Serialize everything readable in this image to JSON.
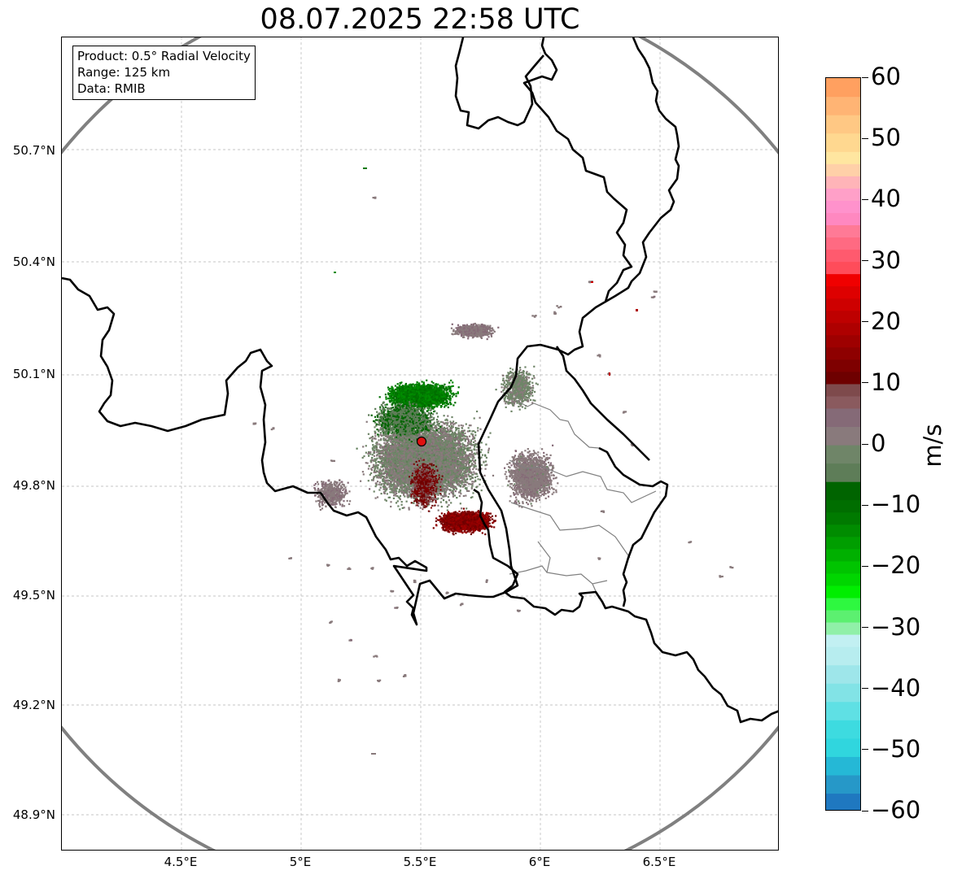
{
  "title": "08.07.2025 22:58 UTC",
  "info": {
    "product": "Product: 0.5° Radial Velocity",
    "range": "Range: 125 km",
    "source": "Data: RMIB"
  },
  "axes": {
    "lat_labels": [
      "50.7°N",
      "50.4°N",
      "50.1°N",
      "49.8°N",
      "49.5°N",
      "49.2°N",
      "48.9°N"
    ],
    "lon_labels": [
      "4.5°E",
      "5°E",
      "5.5°E",
      "6°E",
      "6.5°E"
    ]
  },
  "map": {
    "extent_lon": [
      4.0,
      7.0
    ],
    "extent_lat": [
      48.8,
      51.0
    ],
    "radar_site": {
      "lon": 5.505,
      "lat": 49.914
    },
    "range_km": 125
  },
  "colorbar": {
    "label": "m/s",
    "min": -60,
    "max": 60,
    "tick_labels": [
      "60",
      "50",
      "40",
      "30",
      "20",
      "10",
      "0",
      "−10",
      "−20",
      "−30",
      "−40",
      "−50",
      "−60"
    ],
    "bands": [
      {
        "from": -60,
        "to": -57,
        "color": "#1f78c0"
      },
      {
        "from": -57,
        "to": -54,
        "color": "#2698c8"
      },
      {
        "from": -54,
        "to": -51,
        "color": "#25b8d6"
      },
      {
        "from": -51,
        "to": -48,
        "color": "#30d6de"
      },
      {
        "from": -48,
        "to": -45,
        "color": "#3ddbe0"
      },
      {
        "from": -45,
        "to": -42,
        "color": "#5fe0e4"
      },
      {
        "from": -42,
        "to": -39,
        "color": "#82e3e6"
      },
      {
        "from": -39,
        "to": -36,
        "color": "#9ee6ea"
      },
      {
        "from": -36,
        "to": -33,
        "color": "#b7edef"
      },
      {
        "from": -33,
        "to": -31,
        "color": "#c2f0f2"
      },
      {
        "from": -31,
        "to": -29,
        "color": "#90f0a8"
      },
      {
        "from": -29,
        "to": -27,
        "color": "#5cf070"
      },
      {
        "from": -27,
        "to": -25,
        "color": "#2ef840"
      },
      {
        "from": -25,
        "to": -23,
        "color": "#00ee00"
      },
      {
        "from": -23,
        "to": -21,
        "color": "#00d600"
      },
      {
        "from": -21,
        "to": -19,
        "color": "#00c400"
      },
      {
        "from": -19,
        "to": -17,
        "color": "#00b000"
      },
      {
        "from": -17,
        "to": -15,
        "color": "#009e00"
      },
      {
        "from": -15,
        "to": -13,
        "color": "#008c00"
      },
      {
        "from": -13,
        "to": -11,
        "color": "#007a00"
      },
      {
        "from": -11,
        "to": -9,
        "color": "#006e00"
      },
      {
        "from": -9,
        "to": -6,
        "color": "#006400"
      },
      {
        "from": -6,
        "to": -3,
        "color": "#5e7d58"
      },
      {
        "from": -3,
        "to": 0,
        "color": "#6f8568"
      },
      {
        "from": 0,
        "to": 3,
        "color": "#897a7c"
      },
      {
        "from": 3,
        "to": 6,
        "color": "#856a77"
      },
      {
        "from": 6,
        "to": 8,
        "color": "#8a5a5e"
      },
      {
        "from": 8,
        "to": 10,
        "color": "#7e4a4c"
      },
      {
        "from": 10,
        "to": 12,
        "color": "#6e0000"
      },
      {
        "from": 12,
        "to": 14,
        "color": "#7e0000"
      },
      {
        "from": 14,
        "to": 16,
        "color": "#8e0000"
      },
      {
        "from": 16,
        "to": 18,
        "color": "#9e0000"
      },
      {
        "from": 18,
        "to": 20,
        "color": "#ae0000"
      },
      {
        "from": 20,
        "to": 22,
        "color": "#be0000"
      },
      {
        "from": 22,
        "to": 24,
        "color": "#ce0000"
      },
      {
        "from": 24,
        "to": 26,
        "color": "#de0000"
      },
      {
        "from": 26,
        "to": 28,
        "color": "#f00000"
      },
      {
        "from": 28,
        "to": 30,
        "color": "#ff4c5a"
      },
      {
        "from": 30,
        "to": 32,
        "color": "#ff5a6e"
      },
      {
        "from": 32,
        "to": 34,
        "color": "#ff6a82"
      },
      {
        "from": 34,
        "to": 36,
        "color": "#ff7a96"
      },
      {
        "from": 36,
        "to": 38,
        "color": "#ff88c0"
      },
      {
        "from": 38,
        "to": 40,
        "color": "#ff92cc"
      },
      {
        "from": 40,
        "to": 42,
        "color": "#ffa0c8"
      },
      {
        "from": 42,
        "to": 44,
        "color": "#ffb4b8"
      },
      {
        "from": 44,
        "to": 46,
        "color": "#ffd0a8"
      },
      {
        "from": 46,
        "to": 48,
        "color": "#ffe6a0"
      },
      {
        "from": 48,
        "to": 51,
        "color": "#ffd890"
      },
      {
        "from": 51,
        "to": 54,
        "color": "#ffc884"
      },
      {
        "from": 54,
        "to": 57,
        "color": "#ffb474"
      },
      {
        "from": 57,
        "to": 60,
        "color": "#ffa060"
      }
    ]
  },
  "colors": {
    "range_ring": "#808080",
    "grid": "#b4b4b4",
    "border": "#000000",
    "province": "#808080",
    "radar_site": "#e01010"
  }
}
